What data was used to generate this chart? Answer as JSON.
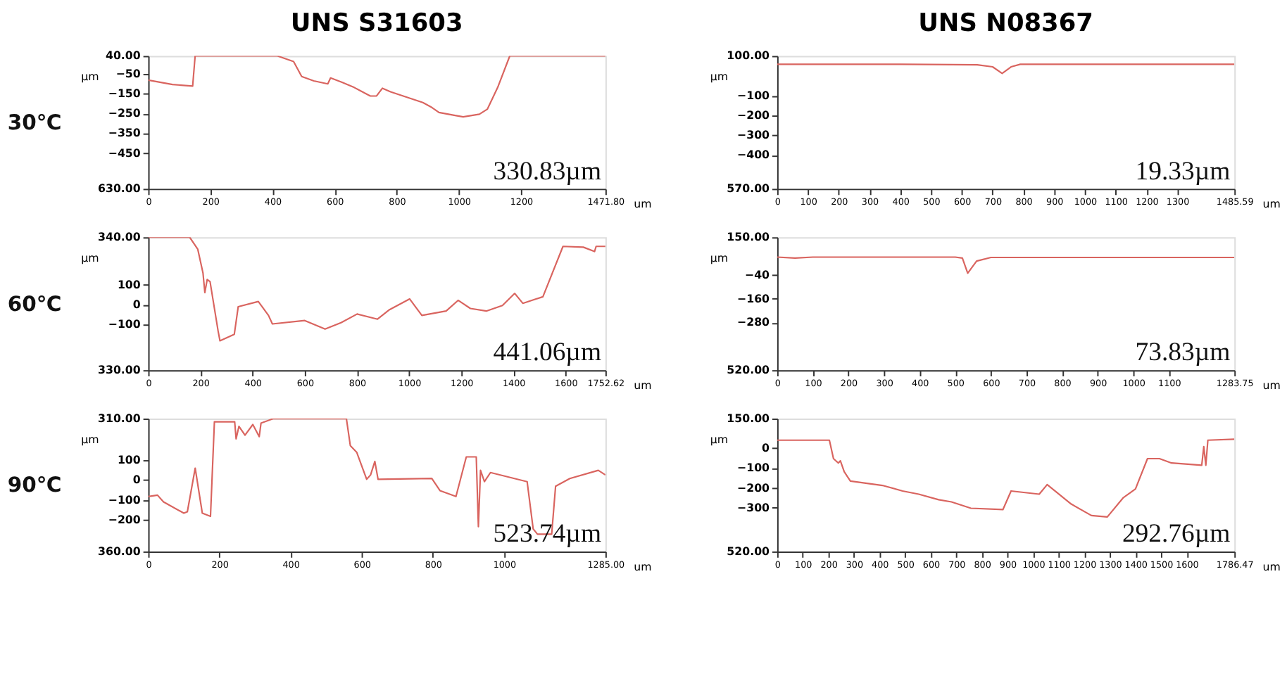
{
  "chart_data": [
    {
      "type": "line",
      "title": "UNS S31603",
      "subtitle": "30℃",
      "xlabel": "um",
      "ylabel": "µm",
      "color": "#d9645f",
      "annotations": [
        "330.83µm"
      ],
      "x": [
        0,
        78,
        143,
        151,
        416,
        468,
        494,
        533,
        578,
        587,
        624,
        663,
        715,
        735,
        754,
        780,
        884,
        910,
        936,
        988,
        1014,
        1066,
        1092,
        1125,
        1164,
        1471.8
      ],
      "values": [
        -82,
        -104,
        -112,
        40,
        40,
        12,
        -64,
        -86,
        -101,
        -71,
        -93,
        -119,
        -162,
        -162,
        -123,
        -141,
        -195,
        -217,
        -245,
        -260,
        -267,
        -254,
        -228,
        -119,
        40,
        40
      ],
      "xlim": [
        0,
        1471.8
      ],
      "xticks": [
        0,
        200,
        400,
        600,
        800,
        1000,
        1200,
        {
          "value": 1471.8,
          "label": "1471.80"
        }
      ],
      "ylim": [
        -630,
        40
      ],
      "yticks": [
        {
          "value": 40,
          "label": "40.00"
        },
        -50,
        -150,
        -250,
        -350,
        -450,
        {
          "value": -630,
          "label": "630.00"
        }
      ],
      "grid": false
    },
    {
      "type": "line",
      "title": "UNS N08367",
      "xlabel": "um",
      "ylabel": "µm",
      "color": "#d9645f",
      "annotations": [
        "19.33µm"
      ],
      "x": [
        0,
        400,
        650,
        700,
        731,
        760,
        790,
        1485.59
      ],
      "values": [
        58,
        58,
        55,
        45,
        12,
        45,
        58,
        58
      ],
      "xlim": [
        0,
        1485.59
      ],
      "xticks": [
        0,
        100,
        200,
        300,
        400,
        500,
        600,
        700,
        800,
        900,
        1000,
        1100,
        1200,
        1300,
        {
          "value": 1485.59,
          "label": "1485.59"
        }
      ],
      "ylim": [
        -570,
        100
      ],
      "yticks": [
        {
          "value": 100,
          "label": "100.00"
        },
        -100,
        -200,
        -300,
        -400,
        {
          "value": -570,
          "label": "570.00"
        }
      ],
      "grid": false
    },
    {
      "type": "line",
      "subtitle": "60℃",
      "xlabel": "um",
      "ylabel": "µm",
      "color": "#d9645f",
      "annotations": [
        "441.06µm"
      ],
      "x": [
        0,
        159,
        190,
        210,
        217,
        226,
        237,
        268,
        275,
        330,
        345,
        422,
        461,
        476,
        600,
        678,
        739,
        801,
        879,
        925,
        1002,
        1049,
        1142,
        1188,
        1235,
        1296,
        1358,
        1405,
        1436,
        1513,
        1590,
        1668,
        1711,
        1717,
        1752.62
      ],
      "values": [
        340,
        340,
        279,
        159,
        61,
        127,
        116,
        -134,
        -182,
        -149,
        -10,
        16,
        -54,
        -97,
        -80,
        -123,
        -91,
        -47,
        -73,
        -25,
        29,
        -54,
        -32,
        22,
        -19,
        -32,
        -4,
        57,
        7,
        40,
        294,
        290,
        268,
        294,
        294
      ],
      "xlim": [
        0,
        1752.62
      ],
      "xticks": [
        0,
        200,
        400,
        600,
        800,
        1000,
        1200,
        1400,
        1600,
        {
          "value": 1752.62,
          "label": "1752.62"
        }
      ],
      "ylim": [
        -330,
        340
      ],
      "yticks": [
        {
          "value": 340,
          "label": "340.00"
        },
        100,
        0,
        -100,
        {
          "value": -330,
          "label": "330.00"
        }
      ],
      "grid": false
    },
    {
      "type": "line",
      "xlabel": "um",
      "ylabel": "µm",
      "color": "#d9645f",
      "annotations": [
        "73.83µm"
      ],
      "x": [
        0,
        50,
        100,
        500,
        520,
        535,
        560,
        600,
        1283.75
      ],
      "values": [
        50,
        45,
        50,
        50,
        45,
        -31,
        30,
        48,
        48
      ],
      "xlim": [
        0,
        1283.75
      ],
      "xticks": [
        0,
        100,
        200,
        300,
        400,
        500,
        600,
        700,
        800,
        900,
        1000,
        1100,
        {
          "value": 1283.75,
          "label": "1283.75"
        }
      ],
      "ylim": [
        -520,
        150
      ],
      "yticks": [
        {
          "value": 150,
          "label": "150.00"
        },
        -40,
        -160,
        -280,
        {
          "value": -520,
          "label": "520.00"
        }
      ],
      "grid": false
    },
    {
      "type": "line",
      "subtitle": "90℃",
      "xlabel": "um",
      "ylabel": "µm",
      "color": "#d9645f",
      "annotations": [
        "523.74µm"
      ],
      "x": [
        0,
        26,
        43,
        100,
        110,
        132,
        152,
        175,
        186,
        243,
        247,
        255,
        272,
        294,
        312,
        317,
        352,
        557,
        568,
        586,
        614,
        625,
        637,
        646,
        797,
        820,
        865,
        894,
        922,
        928,
        934,
        945,
        962,
        1065,
        1082,
        1094,
        1134,
        1145,
        1185,
        1265,
        1285
      ],
      "values": [
        -83,
        -76,
        -110,
        -167,
        -160,
        60,
        -167,
        -183,
        294,
        294,
        208,
        271,
        226,
        280,
        219,
        287,
        310,
        310,
        174,
        140,
        4,
        26,
        94,
        4,
        8,
        -53,
        -83,
        117,
        117,
        -235,
        49,
        -8,
        38,
        -8,
        -246,
        -273,
        -273,
        -31,
        8,
        49,
        26
      ],
      "xlim": [
        0,
        1285
      ],
      "xticks": [
        0,
        200,
        400,
        600,
        800,
        1000,
        {
          "value": 1285,
          "label": "1285.00"
        }
      ],
      "ylim": [
        -360,
        310
      ],
      "yticks": [
        {
          "value": 310,
          "label": "310.00"
        },
        100,
        0,
        -100,
        -200,
        {
          "value": -360,
          "label": "360.00"
        }
      ],
      "grid": false
    },
    {
      "type": "line",
      "xlabel": "um",
      "ylabel": "µm",
      "color": "#d9645f",
      "annotations": [
        "292.76µm"
      ],
      "x": [
        0,
        204,
        220,
        239,
        247,
        262,
        286,
        411,
        490,
        553,
        631,
        681,
        757,
        882,
        914,
        1024,
        1055,
        1149,
        1228,
        1290,
        1353,
        1400,
        1447,
        1494,
        1541,
        1659,
        1667,
        1675,
        1683,
        1786.47
      ],
      "values": [
        41,
        41,
        -52,
        -74,
        -63,
        -118,
        -165,
        -187,
        -215,
        -231,
        -259,
        -270,
        -302,
        -309,
        -215,
        -231,
        -183,
        -281,
        -339,
        -346,
        -248,
        -205,
        -52,
        -52,
        -74,
        -85,
        9,
        -85,
        41,
        46
      ],
      "xlim": [
        0,
        1786.47
      ],
      "xticks": [
        0,
        100,
        200,
        300,
        400,
        500,
        600,
        700,
        800,
        900,
        1000,
        1100,
        1200,
        1300,
        1400,
        1500,
        1600,
        {
          "value": 1786.47,
          "label": "1786.47"
        }
      ],
      "ylim": [
        -520,
        150
      ],
      "yticks": [
        {
          "value": 150,
          "label": "150.00"
        },
        0,
        -100,
        -200,
        -300,
        {
          "value": -520,
          "label": "520.00"
        }
      ],
      "grid": false
    }
  ]
}
